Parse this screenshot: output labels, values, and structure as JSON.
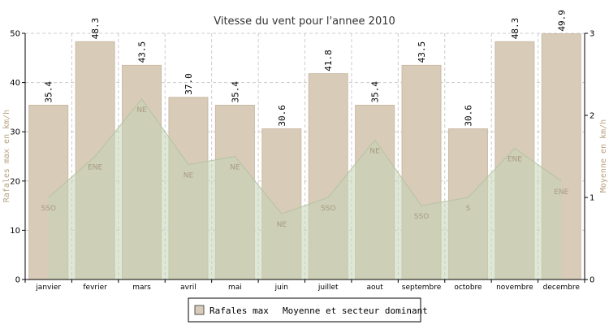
{
  "chart_data": {
    "type": "bar",
    "title": "Vitesse du vent pour l'annee 2010",
    "ylabel_left": "Rafales max en km/h",
    "ylabel_right": "Moyenne en km/h",
    "ylim_left": [
      0,
      50
    ],
    "ylim_right": [
      0,
      3
    ],
    "yticks_left": [
      0,
      10,
      20,
      30,
      40,
      50
    ],
    "yticks_right": [
      0,
      1,
      2,
      3
    ],
    "grid": true,
    "legend_position": "bottom-center",
    "categories": [
      "janvier",
      "fevrier",
      "mars",
      "avril",
      "mai",
      "juin",
      "juillet",
      "aout",
      "septembre",
      "octobre",
      "novembre",
      "decembre"
    ],
    "series": [
      {
        "name": "Rafales max",
        "axis": "left",
        "type": "bar",
        "values": [
          35.4,
          48.3,
          43.5,
          37.0,
          35.4,
          30.6,
          41.8,
          35.4,
          43.5,
          30.6,
          48.3,
          49.9
        ],
        "labels": [
          "35.4",
          "48.3",
          "43.5",
          "37.0",
          "35.4",
          "30.6",
          "41.8",
          "35.4",
          "43.5",
          "30.6",
          "48.3",
          "49.9"
        ]
      },
      {
        "name": "Moyenne et secteur dominant",
        "axis": "right",
        "type": "area",
        "values": [
          1.0,
          1.5,
          2.2,
          1.4,
          1.5,
          0.8,
          1.0,
          1.7,
          0.9,
          1.0,
          1.6,
          1.2
        ],
        "sectors": [
          "SSO",
          "ENE",
          "NE",
          "NE",
          "NE",
          "NE",
          "SSO",
          "NE",
          "SSO",
          "S",
          "ENE",
          "ENE"
        ]
      }
    ],
    "colors": {
      "bar_fill": "#d8cbb8",
      "bar_stroke": "#c9bba6",
      "area_fill": "#c5d3b4",
      "area_stroke": "#b6c3a3",
      "sector_text": "#a99a83",
      "left_axis_title": "#b8a27f",
      "right_axis_title": "#b8a27f",
      "grid": "#cccccc",
      "plot_bg": "#ffffff"
    }
  }
}
